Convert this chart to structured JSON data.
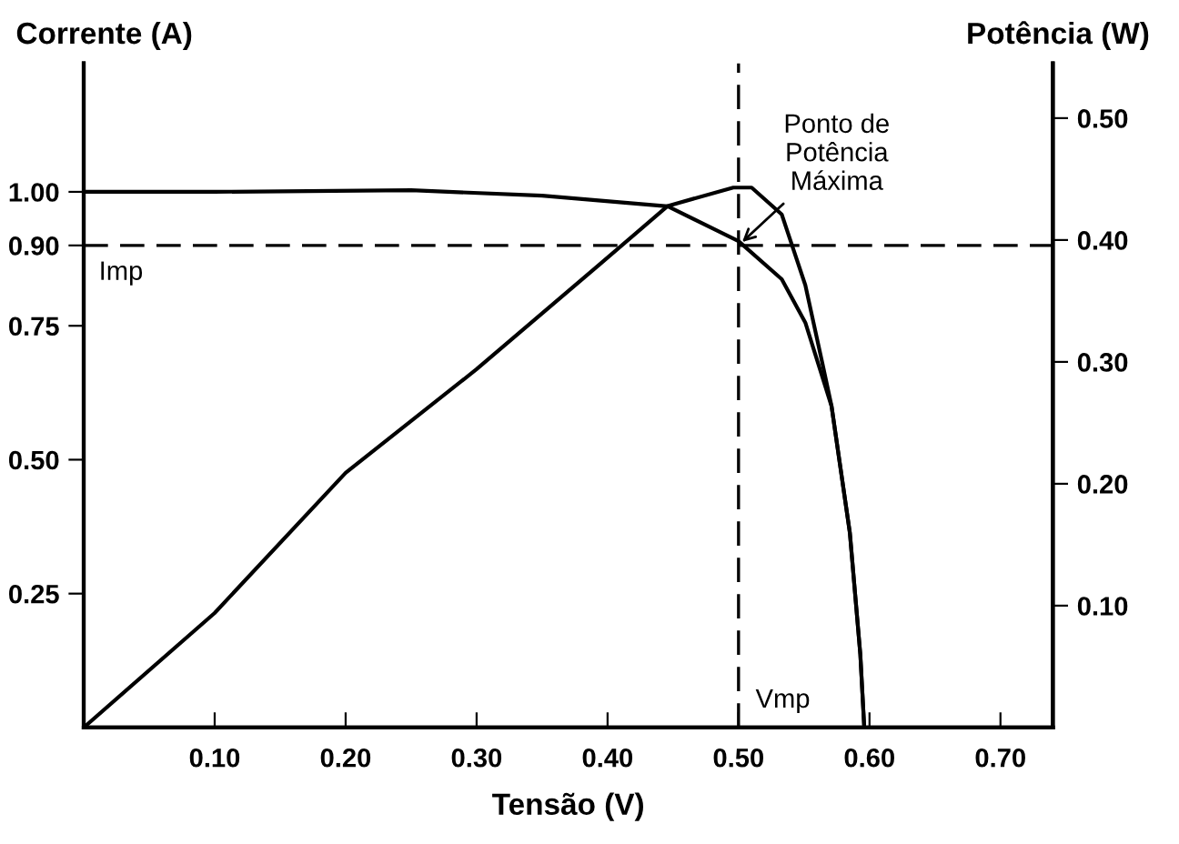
{
  "chart_data": {
    "type": "line",
    "xlabel": "Tensão (V)",
    "ylabel": "Corrente (A)",
    "y2label": "Potência (W)",
    "series": [
      {
        "color": "#000000",
        "x": [
          0,
          0.1,
          0.25,
          0.35,
          0.446,
          0.5,
          0.533,
          0.551,
          0.571,
          0.585,
          0.593,
          0.596
        ],
        "values": [
          1.0,
          1.0,
          1.003,
          0.993,
          0.973,
          0.908,
          0.837,
          0.756,
          0.6,
          0.363,
          0.136,
          0
        ]
      },
      {
        "color": "#000000",
        "axis": "y2",
        "x": [
          0,
          0.1,
          0.2,
          0.3,
          0.394,
          0.446,
          0.496,
          0.51,
          0.533,
          0.551,
          0.564,
          0.571,
          0.585,
          0.593,
          0.596
        ],
        "values": [
          0,
          0.094,
          0.209,
          0.294,
          0.38,
          0.428,
          0.443,
          0.443,
          0.421,
          0.363,
          0.299,
          0.264,
          0.16,
          0.06,
          0
        ]
      }
    ],
    "xlim": [
      0,
      0.74
    ],
    "xticks": [
      {
        "value": 0.1,
        "label": "0.10"
      },
      {
        "value": 0.2,
        "label": "0.20"
      },
      {
        "value": 0.3,
        "label": "0.30"
      },
      {
        "value": 0.4,
        "label": "0.40"
      },
      {
        "value": 0.5,
        "label": "0.50"
      },
      {
        "value": 0.6,
        "label": "0.60"
      },
      {
        "value": 0.7,
        "label": "0.70"
      }
    ],
    "ylim": [
      0,
      1.24
    ],
    "yticks": [
      {
        "value": 0.25,
        "label": "0.25"
      },
      {
        "value": 0.5,
        "label": "0.50"
      },
      {
        "value": 0.75,
        "label": "0.75"
      },
      {
        "value": 0.9,
        "label": "0.90"
      },
      {
        "value": 1.0,
        "label": "1.00"
      }
    ],
    "y2lim": [
      0,
      0.545
    ],
    "y2ticks": [
      {
        "value": 0.1,
        "label": "0.10"
      },
      {
        "value": 0.2,
        "label": "0.20"
      },
      {
        "value": 0.3,
        "label": "0.30"
      },
      {
        "value": 0.4,
        "label": "0.40"
      },
      {
        "value": 0.5,
        "label": "0.50"
      }
    ],
    "ref_lines": [
      {
        "axis": "y",
        "value": 0.9,
        "label": "Imp",
        "line_style": "dashed",
        "color": "#000000"
      },
      {
        "axis": "x",
        "value": 0.5,
        "label": "Vmp",
        "line_style": "dashed",
        "color": "#000000"
      }
    ],
    "annotations": [
      {
        "text": "Ponto de\nPotência\nMáxima",
        "x": 0.5,
        "y": 0.9
      }
    ],
    "grid": false,
    "marker": "none",
    "line_style": "solid"
  }
}
